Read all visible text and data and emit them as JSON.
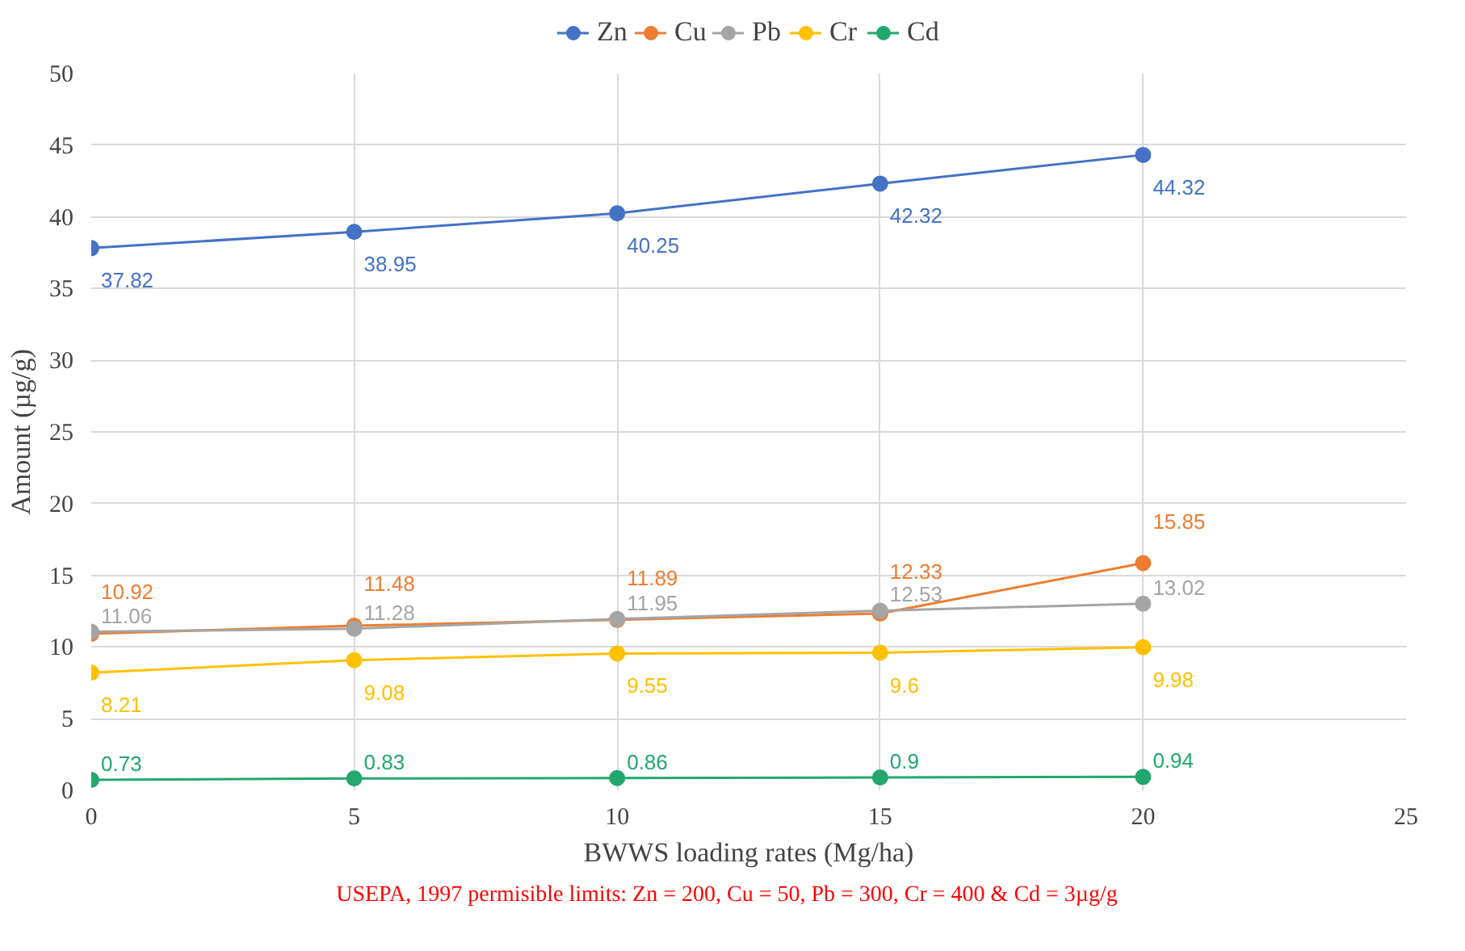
{
  "chart_data": {
    "type": "line",
    "xlabel": "BWWS loading rates (Mg/ha)",
    "ylabel": "Amount (µg/g)",
    "x": [
      0,
      5,
      10,
      15,
      20
    ],
    "series": [
      {
        "name": "Zn",
        "color": "#4472c4",
        "values": [
          37.82,
          38.95,
          40.25,
          42.32,
          44.32
        ]
      },
      {
        "name": "Cu",
        "color": "#ed7d31",
        "values": [
          10.92,
          11.48,
          11.89,
          12.33,
          15.85
        ]
      },
      {
        "name": "Pb",
        "color": "#a5a5a5",
        "values": [
          11.06,
          11.28,
          11.95,
          12.53,
          13.02
        ]
      },
      {
        "name": "Cr",
        "color": "#ffc000",
        "values": [
          8.21,
          9.08,
          9.55,
          9.6,
          9.98
        ]
      },
      {
        "name": "Cd",
        "color": "#22a86e",
        "values": [
          0.73,
          0.83,
          0.86,
          0.9,
          0.94
        ]
      }
    ],
    "xlim": [
      0,
      25
    ],
    "xticks": [
      0,
      5,
      10,
      15,
      20,
      25
    ],
    "ylim": [
      0,
      50
    ],
    "yticks": [
      0,
      5,
      10,
      15,
      20,
      25,
      30,
      35,
      40,
      45,
      50
    ],
    "grid": true,
    "legend": "top",
    "marker": "circle",
    "line_style": "solid",
    "data_labels": true,
    "annotations": [
      "USEPA, 1997 permisible  limits:  Zn = 200, Cu = 50, Pb = 300, Cr = 400 & Cd = 3µg/g"
    ]
  }
}
